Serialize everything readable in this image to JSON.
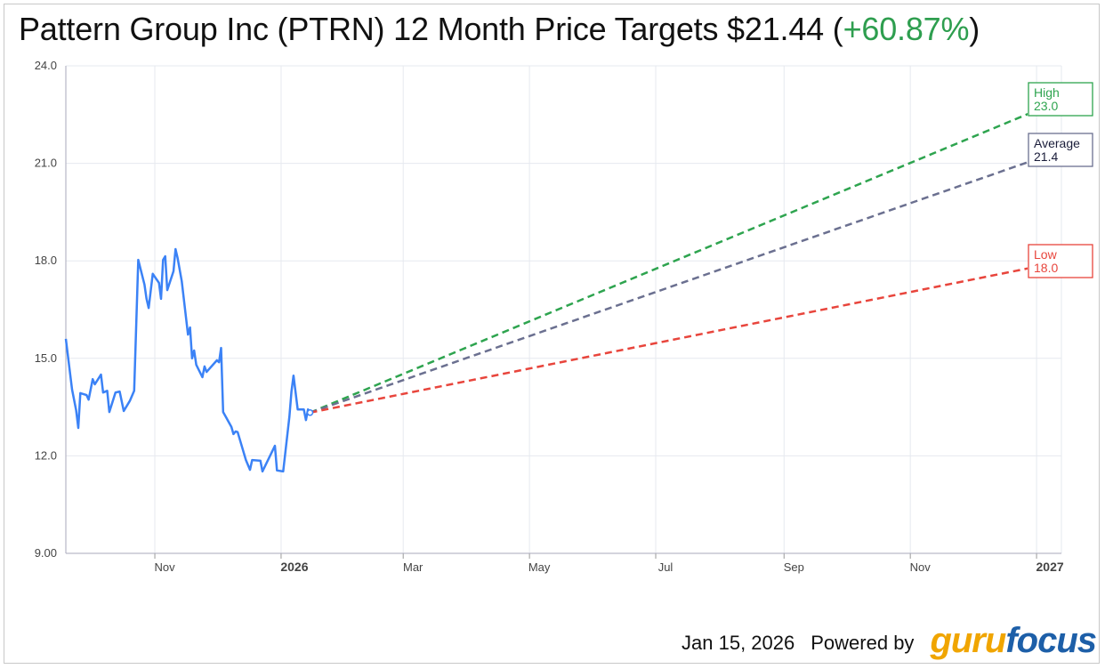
{
  "title": {
    "prefix": "Pattern Group Inc (PTRN) 12 Month Price Targets $21.44 (",
    "change": "+60.87%",
    "suffix": ")"
  },
  "footer": {
    "date": "Jan 15, 2026",
    "powered_by": "Powered by",
    "logo_guru": "guru",
    "logo_focus": "focus"
  },
  "colors": {
    "price": "#3b82f6",
    "high": "#2ea44f",
    "average": "#6b7090",
    "low": "#e8453c",
    "grid": "#e6e9ef",
    "change_positive": "#2e9e4f"
  },
  "chart_data": {
    "type": "line",
    "title": "Pattern Group Inc (PTRN) 12 Month Price Targets $21.44 (+60.87%)",
    "xlim": [
      "2025-09-19",
      "2027-01-13"
    ],
    "ylim": [
      9,
      24
    ],
    "grid": true,
    "y_ticks": [
      {
        "v": 9,
        "label": "9.00"
      },
      {
        "v": 12,
        "label": "12.0"
      },
      {
        "v": 15,
        "label": "15.0"
      },
      {
        "v": 18,
        "label": "18.0"
      },
      {
        "v": 21,
        "label": "21.0"
      },
      {
        "v": 24,
        "label": "24.0"
      }
    ],
    "x_ticks": [
      {
        "date": "2025-11-01",
        "label": "Nov",
        "bold": false
      },
      {
        "date": "2026-01-01",
        "label": "2026",
        "bold": true
      },
      {
        "date": "2026-03-01",
        "label": "Mar",
        "bold": false
      },
      {
        "date": "2026-05-01",
        "label": "May",
        "bold": false
      },
      {
        "date": "2026-07-01",
        "label": "Jul",
        "bold": false
      },
      {
        "date": "2026-09-01",
        "label": "Sep",
        "bold": false
      },
      {
        "date": "2026-11-01",
        "label": "Nov",
        "bold": false
      },
      {
        "date": "2027-01-01",
        "label": "2027",
        "bold": true
      }
    ],
    "price_series": [
      [
        "2025-09-19",
        15.6
      ],
      [
        "2025-09-22",
        14.04
      ],
      [
        "2025-09-24",
        13.4
      ],
      [
        "2025-09-25",
        12.86
      ],
      [
        "2025-09-26",
        13.93
      ],
      [
        "2025-09-29",
        13.87
      ],
      [
        "2025-09-30",
        13.73
      ],
      [
        "2025-10-02",
        14.36
      ],
      [
        "2025-10-03",
        14.2
      ],
      [
        "2025-10-06",
        14.5
      ],
      [
        "2025-10-07",
        13.95
      ],
      [
        "2025-10-09",
        14.0
      ],
      [
        "2025-10-10",
        13.35
      ],
      [
        "2025-10-13",
        13.95
      ],
      [
        "2025-10-15",
        13.98
      ],
      [
        "2025-10-17",
        13.38
      ],
      [
        "2025-10-20",
        13.7
      ],
      [
        "2025-10-22",
        14.0
      ],
      [
        "2025-10-24",
        18.03
      ],
      [
        "2025-10-27",
        17.27
      ],
      [
        "2025-10-28",
        16.83
      ],
      [
        "2025-10-29",
        16.55
      ],
      [
        "2025-10-31",
        17.6
      ],
      [
        "2025-11-03",
        17.32
      ],
      [
        "2025-11-04",
        16.83
      ],
      [
        "2025-11-05",
        18.03
      ],
      [
        "2025-11-06",
        18.14
      ],
      [
        "2025-11-07",
        17.1
      ],
      [
        "2025-11-10",
        17.68
      ],
      [
        "2025-11-11",
        18.36
      ],
      [
        "2025-11-12",
        18.09
      ],
      [
        "2025-11-14",
        17.37
      ],
      [
        "2025-11-17",
        15.73
      ],
      [
        "2025-11-18",
        15.95
      ],
      [
        "2025-11-19",
        15.0
      ],
      [
        "2025-11-20",
        15.24
      ],
      [
        "2025-11-21",
        14.8
      ],
      [
        "2025-11-24",
        14.42
      ],
      [
        "2025-11-25",
        14.75
      ],
      [
        "2025-11-26",
        14.58
      ],
      [
        "2025-12-01",
        14.94
      ],
      [
        "2025-12-02",
        14.88
      ],
      [
        "2025-12-03",
        15.32
      ],
      [
        "2025-12-04",
        13.35
      ],
      [
        "2025-12-08",
        12.89
      ],
      [
        "2025-12-09",
        12.67
      ],
      [
        "2025-12-10",
        12.75
      ],
      [
        "2025-12-11",
        12.73
      ],
      [
        "2025-12-15",
        11.87
      ],
      [
        "2025-12-17",
        11.57
      ],
      [
        "2025-12-18",
        11.87
      ],
      [
        "2025-12-22",
        11.85
      ],
      [
        "2025-12-23",
        11.52
      ],
      [
        "2025-12-29",
        12.31
      ],
      [
        "2025-12-30",
        11.55
      ],
      [
        "2026-01-02",
        11.52
      ],
      [
        "2026-01-05",
        13.21
      ],
      [
        "2026-01-06",
        13.98
      ],
      [
        "2026-01-07",
        14.47
      ],
      [
        "2026-01-09",
        13.43
      ],
      [
        "2026-01-12",
        13.43
      ],
      [
        "2026-01-13",
        13.1
      ],
      [
        "2026-01-14",
        13.43
      ],
      [
        "2026-01-15",
        13.33
      ]
    ],
    "targets": {
      "start": [
        "2026-01-15",
        13.33
      ],
      "end_date": "2027-01-15",
      "lines": [
        {
          "key": "high",
          "label": "High",
          "value": 23.0,
          "value_label": "23.0"
        },
        {
          "key": "average",
          "label": "Average",
          "value": 21.44,
          "value_label": "21.4"
        },
        {
          "key": "low",
          "label": "Low",
          "value": 18.0,
          "value_label": "18.0"
        }
      ]
    }
  }
}
